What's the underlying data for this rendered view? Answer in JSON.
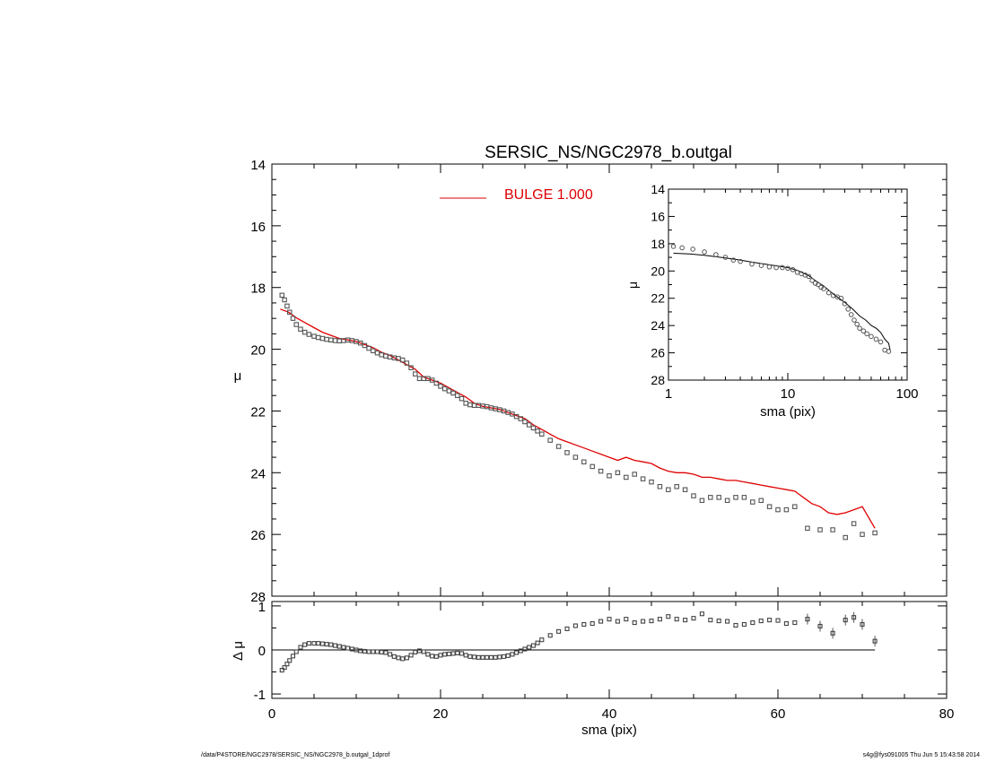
{
  "chart_data": [
    {
      "type": "scatter",
      "panel": "main",
      "title": "SERSIC_NS/NGC2978_b.outgal",
      "xlabel": "",
      "ylabel": "μ",
      "xlim": [
        0,
        80
      ],
      "ylim": [
        28,
        14
      ],
      "y_inverted": true,
      "yticks": [
        14,
        16,
        18,
        20,
        22,
        24,
        26,
        28
      ],
      "legend": {
        "placement": "top-center",
        "entries": [
          {
            "label": "BULGE  1.000",
            "color": "#e00000",
            "marker": "line"
          }
        ]
      },
      "series": [
        {
          "name": "data",
          "marker": "open-square",
          "color": "#555555",
          "x": [
            1.2,
            1.5,
            1.8,
            2.1,
            2.5,
            2.9,
            3.4,
            3.9,
            4.4,
            5.0,
            5.5,
            6.0,
            6.5,
            7.0,
            7.5,
            8.0,
            8.5,
            9.0,
            9.5,
            10.0,
            10.5,
            11.0,
            11.5,
            12.0,
            12.5,
            13.0,
            13.5,
            14.0,
            14.5,
            15.0,
            15.5,
            16.0,
            16.5,
            17.0,
            17.5,
            18.0,
            18.5,
            19.0,
            19.5,
            20.0,
            20.5,
            21.0,
            21.5,
            22.0,
            22.5,
            23.0,
            23.5,
            24.0,
            24.5,
            25.0,
            25.5,
            26.0,
            26.5,
            27.0,
            27.5,
            28.0,
            28.5,
            29.0,
            29.5,
            30.0,
            30.5,
            31.0,
            31.5,
            32.0,
            33.0,
            34.0,
            35.0,
            36.0,
            37.0,
            38.0,
            39.0,
            40.0,
            41.0,
            42.0,
            43.0,
            44.0,
            45.0,
            46.0,
            47.0,
            48.0,
            49.0,
            50.0,
            51.0,
            52.0,
            53.0,
            54.0,
            55.0,
            56.0,
            57.0,
            58.0,
            59.0,
            60.0,
            61.0,
            62.0,
            63.5,
            65.0,
            66.5,
            68.0,
            69.0,
            70.0,
            71.5
          ],
          "y": [
            18.25,
            18.4,
            18.6,
            18.8,
            19.0,
            19.2,
            19.35,
            19.45,
            19.52,
            19.58,
            19.62,
            19.65,
            19.68,
            19.7,
            19.72,
            19.73,
            19.72,
            19.7,
            19.72,
            19.75,
            19.8,
            19.88,
            19.97,
            20.05,
            20.12,
            20.18,
            20.22,
            20.25,
            20.28,
            20.3,
            20.35,
            20.45,
            20.6,
            20.8,
            20.95,
            20.95,
            20.95,
            21.0,
            21.1,
            21.2,
            21.28,
            21.35,
            21.42,
            21.5,
            21.6,
            21.75,
            21.8,
            21.82,
            21.82,
            21.84,
            21.86,
            21.9,
            21.93,
            21.96,
            22.0,
            22.05,
            22.1,
            22.18,
            22.25,
            22.35,
            22.45,
            22.55,
            22.65,
            22.75,
            22.95,
            23.15,
            23.35,
            23.5,
            23.65,
            23.8,
            23.95,
            24.1,
            24.0,
            24.15,
            24.05,
            24.2,
            24.3,
            24.45,
            24.55,
            24.45,
            24.55,
            24.75,
            24.9,
            24.8,
            24.8,
            24.9,
            24.8,
            24.8,
            24.95,
            24.9,
            25.1,
            25.2,
            25.2,
            25.1,
            25.8,
            25.85,
            25.85,
            26.1,
            25.65,
            26.0,
            25.95
          ]
        },
        {
          "name": "BULGE  1.000",
          "marker": "line",
          "color": "#e00000",
          "x": [
            1,
            2,
            3,
            4,
            5,
            6,
            7,
            8,
            9,
            10,
            11,
            12,
            13,
            14,
            15,
            16,
            17,
            18,
            19,
            20,
            21,
            22,
            23,
            24,
            25,
            26,
            27,
            28,
            29,
            30,
            31,
            32,
            33,
            34,
            35,
            36,
            37,
            38,
            39,
            40,
            41,
            42,
            43,
            44,
            45,
            46,
            47,
            48,
            49,
            50,
            51,
            52,
            53,
            54,
            55,
            56,
            57,
            58,
            59,
            60,
            61,
            62,
            63,
            64,
            65,
            66,
            67,
            68,
            69,
            70,
            71.5
          ],
          "y": [
            18.7,
            18.8,
            19.0,
            19.15,
            19.3,
            19.45,
            19.55,
            19.65,
            19.7,
            19.75,
            19.85,
            19.95,
            20.1,
            20.2,
            20.35,
            20.5,
            20.65,
            20.9,
            21.0,
            21.1,
            21.25,
            21.4,
            21.55,
            21.75,
            21.85,
            21.9,
            21.95,
            22.05,
            22.15,
            22.25,
            22.45,
            22.6,
            22.75,
            22.9,
            23.0,
            23.1,
            23.2,
            23.3,
            23.4,
            23.5,
            23.6,
            23.5,
            23.6,
            23.65,
            23.7,
            23.85,
            23.95,
            24.0,
            24.0,
            24.05,
            24.15,
            24.15,
            24.2,
            24.25,
            24.25,
            24.3,
            24.35,
            24.4,
            24.45,
            24.5,
            24.55,
            24.6,
            24.8,
            25.0,
            25.1,
            25.3,
            25.35,
            25.3,
            25.2,
            25.1,
            25.8
          ]
        }
      ]
    },
    {
      "type": "scatter",
      "panel": "residual",
      "xlabel": "sma (pix)",
      "ylabel": "Δ μ",
      "xlim": [
        0,
        80
      ],
      "ylim": [
        -1.1,
        1.1
      ],
      "yticks": [
        -1,
        0,
        1
      ],
      "xticks": [
        0,
        20,
        40,
        60,
        80
      ],
      "reference_line": 0,
      "series": [
        {
          "name": "residual",
          "marker": "open-square",
          "color": "#555555",
          "x": [
            1.2,
            1.5,
            1.8,
            2.1,
            2.5,
            2.9,
            3.4,
            3.9,
            4.4,
            5.0,
            5.5,
            6.0,
            6.5,
            7.0,
            7.5,
            8.0,
            8.5,
            9.0,
            9.5,
            10.0,
            10.5,
            11.0,
            11.5,
            12.0,
            12.5,
            13.0,
            13.5,
            14.0,
            14.5,
            15.0,
            15.5,
            16.0,
            16.5,
            17.0,
            17.5,
            18.0,
            18.5,
            19.0,
            19.5,
            20.0,
            20.5,
            21.0,
            21.5,
            22.0,
            22.5,
            23.0,
            23.5,
            24.0,
            24.5,
            25.0,
            25.5,
            26.0,
            26.5,
            27.0,
            27.5,
            28.0,
            28.5,
            29.0,
            29.5,
            30.0,
            30.5,
            31.0,
            31.5,
            32.0,
            33.0,
            34.0,
            35.0,
            36.0,
            37.0,
            38.0,
            39.0,
            40.0,
            41.0,
            42.0,
            43.0,
            44.0,
            45.0,
            46.0,
            47.0,
            48.0,
            49.0,
            50.0,
            51.0,
            52.0,
            53.0,
            54.0,
            55.0,
            56.0,
            57.0,
            58.0,
            59.0,
            60.0,
            61.0,
            62.0,
            63.5,
            65.0,
            66.5,
            68.0,
            69.0,
            70.0,
            71.5
          ],
          "y": [
            -0.46,
            -0.4,
            -0.32,
            -0.24,
            -0.14,
            -0.04,
            0.06,
            0.12,
            0.15,
            0.15,
            0.15,
            0.14,
            0.13,
            0.12,
            0.1,
            0.08,
            0.06,
            0.04,
            0.02,
            0.0,
            -0.02,
            -0.03,
            -0.04,
            -0.04,
            -0.04,
            -0.05,
            -0.06,
            -0.1,
            -0.15,
            -0.18,
            -0.2,
            -0.18,
            -0.12,
            -0.05,
            -0.02,
            -0.04,
            -0.1,
            -0.14,
            -0.15,
            -0.12,
            -0.1,
            -0.09,
            -0.08,
            -0.07,
            -0.08,
            -0.12,
            -0.15,
            -0.16,
            -0.17,
            -0.17,
            -0.17,
            -0.17,
            -0.17,
            -0.16,
            -0.15,
            -0.13,
            -0.1,
            -0.06,
            -0.02,
            0.02,
            0.06,
            0.1,
            0.16,
            0.23,
            0.33,
            0.42,
            0.48,
            0.55,
            0.58,
            0.6,
            0.65,
            0.7,
            0.65,
            0.7,
            0.62,
            0.65,
            0.66,
            0.7,
            0.76,
            0.7,
            0.68,
            0.72,
            0.82,
            0.68,
            0.66,
            0.65,
            0.56,
            0.58,
            0.62,
            0.66,
            0.68,
            0.67,
            0.6,
            0.62,
            0.7,
            0.54,
            0.38,
            0.68,
            0.74,
            0.58,
            0.2
          ]
        }
      ]
    },
    {
      "type": "scatter",
      "panel": "inset",
      "xlabel": "sma (pix)",
      "ylabel": "μ",
      "x_scale": "log",
      "xlim": [
        1,
        100
      ],
      "xticks": [
        1,
        10,
        100
      ],
      "ylim": [
        28,
        14
      ],
      "y_inverted": true,
      "yticks": [
        14,
        16,
        18,
        20,
        22,
        24,
        26,
        28
      ],
      "series": [
        {
          "name": "data",
          "marker": "open-circle",
          "color": "#555555",
          "x": [
            1.1,
            1.3,
            1.6,
            2.0,
            2.5,
            3.0,
            3.5,
            4.0,
            5.0,
            6.0,
            7.0,
            8.0,
            9.0,
            10.0,
            11.0,
            12.0,
            13.0,
            14.0,
            15.0,
            16.0,
            17.0,
            18.0,
            19.0,
            20.0,
            22.0,
            24.0,
            26.0,
            28.0,
            30.0,
            32.0,
            34.0,
            36.0,
            38.0,
            40.0,
            43.0,
            46.0,
            50.0,
            55.0,
            60.0,
            65.0,
            70.0
          ],
          "y": [
            18.2,
            18.3,
            18.4,
            18.6,
            18.8,
            19.0,
            19.2,
            19.3,
            19.5,
            19.6,
            19.7,
            19.75,
            19.75,
            19.8,
            19.9,
            20.1,
            20.2,
            20.3,
            20.4,
            20.7,
            20.9,
            21.0,
            21.2,
            21.3,
            21.6,
            21.8,
            21.9,
            22.0,
            22.4,
            22.8,
            23.2,
            23.6,
            23.9,
            24.2,
            24.4,
            24.6,
            24.8,
            25.0,
            25.2,
            25.8,
            25.9
          ]
        },
        {
          "name": "model",
          "marker": "line",
          "color": "#000000",
          "x": [
            1.1,
            1.5,
            2,
            3,
            4,
            5,
            7,
            10,
            12,
            15,
            17,
            20,
            25,
            30,
            35,
            40,
            45,
            50,
            55,
            60,
            65,
            70,
            72
          ],
          "y": [
            18.7,
            18.75,
            18.85,
            19.05,
            19.2,
            19.35,
            19.55,
            19.75,
            19.95,
            20.35,
            20.7,
            21.1,
            21.8,
            22.3,
            22.8,
            23.3,
            23.6,
            24.0,
            24.2,
            24.5,
            25.0,
            25.3,
            25.8
          ]
        }
      ]
    }
  ],
  "footer": {
    "left": "/data/P4STORE/NGC2978/SERSIC_NS/NGC2978_b.outgal_1dprof",
    "right": "s4g@fys091005  Thu Jun  5 15:43:58 2014"
  }
}
